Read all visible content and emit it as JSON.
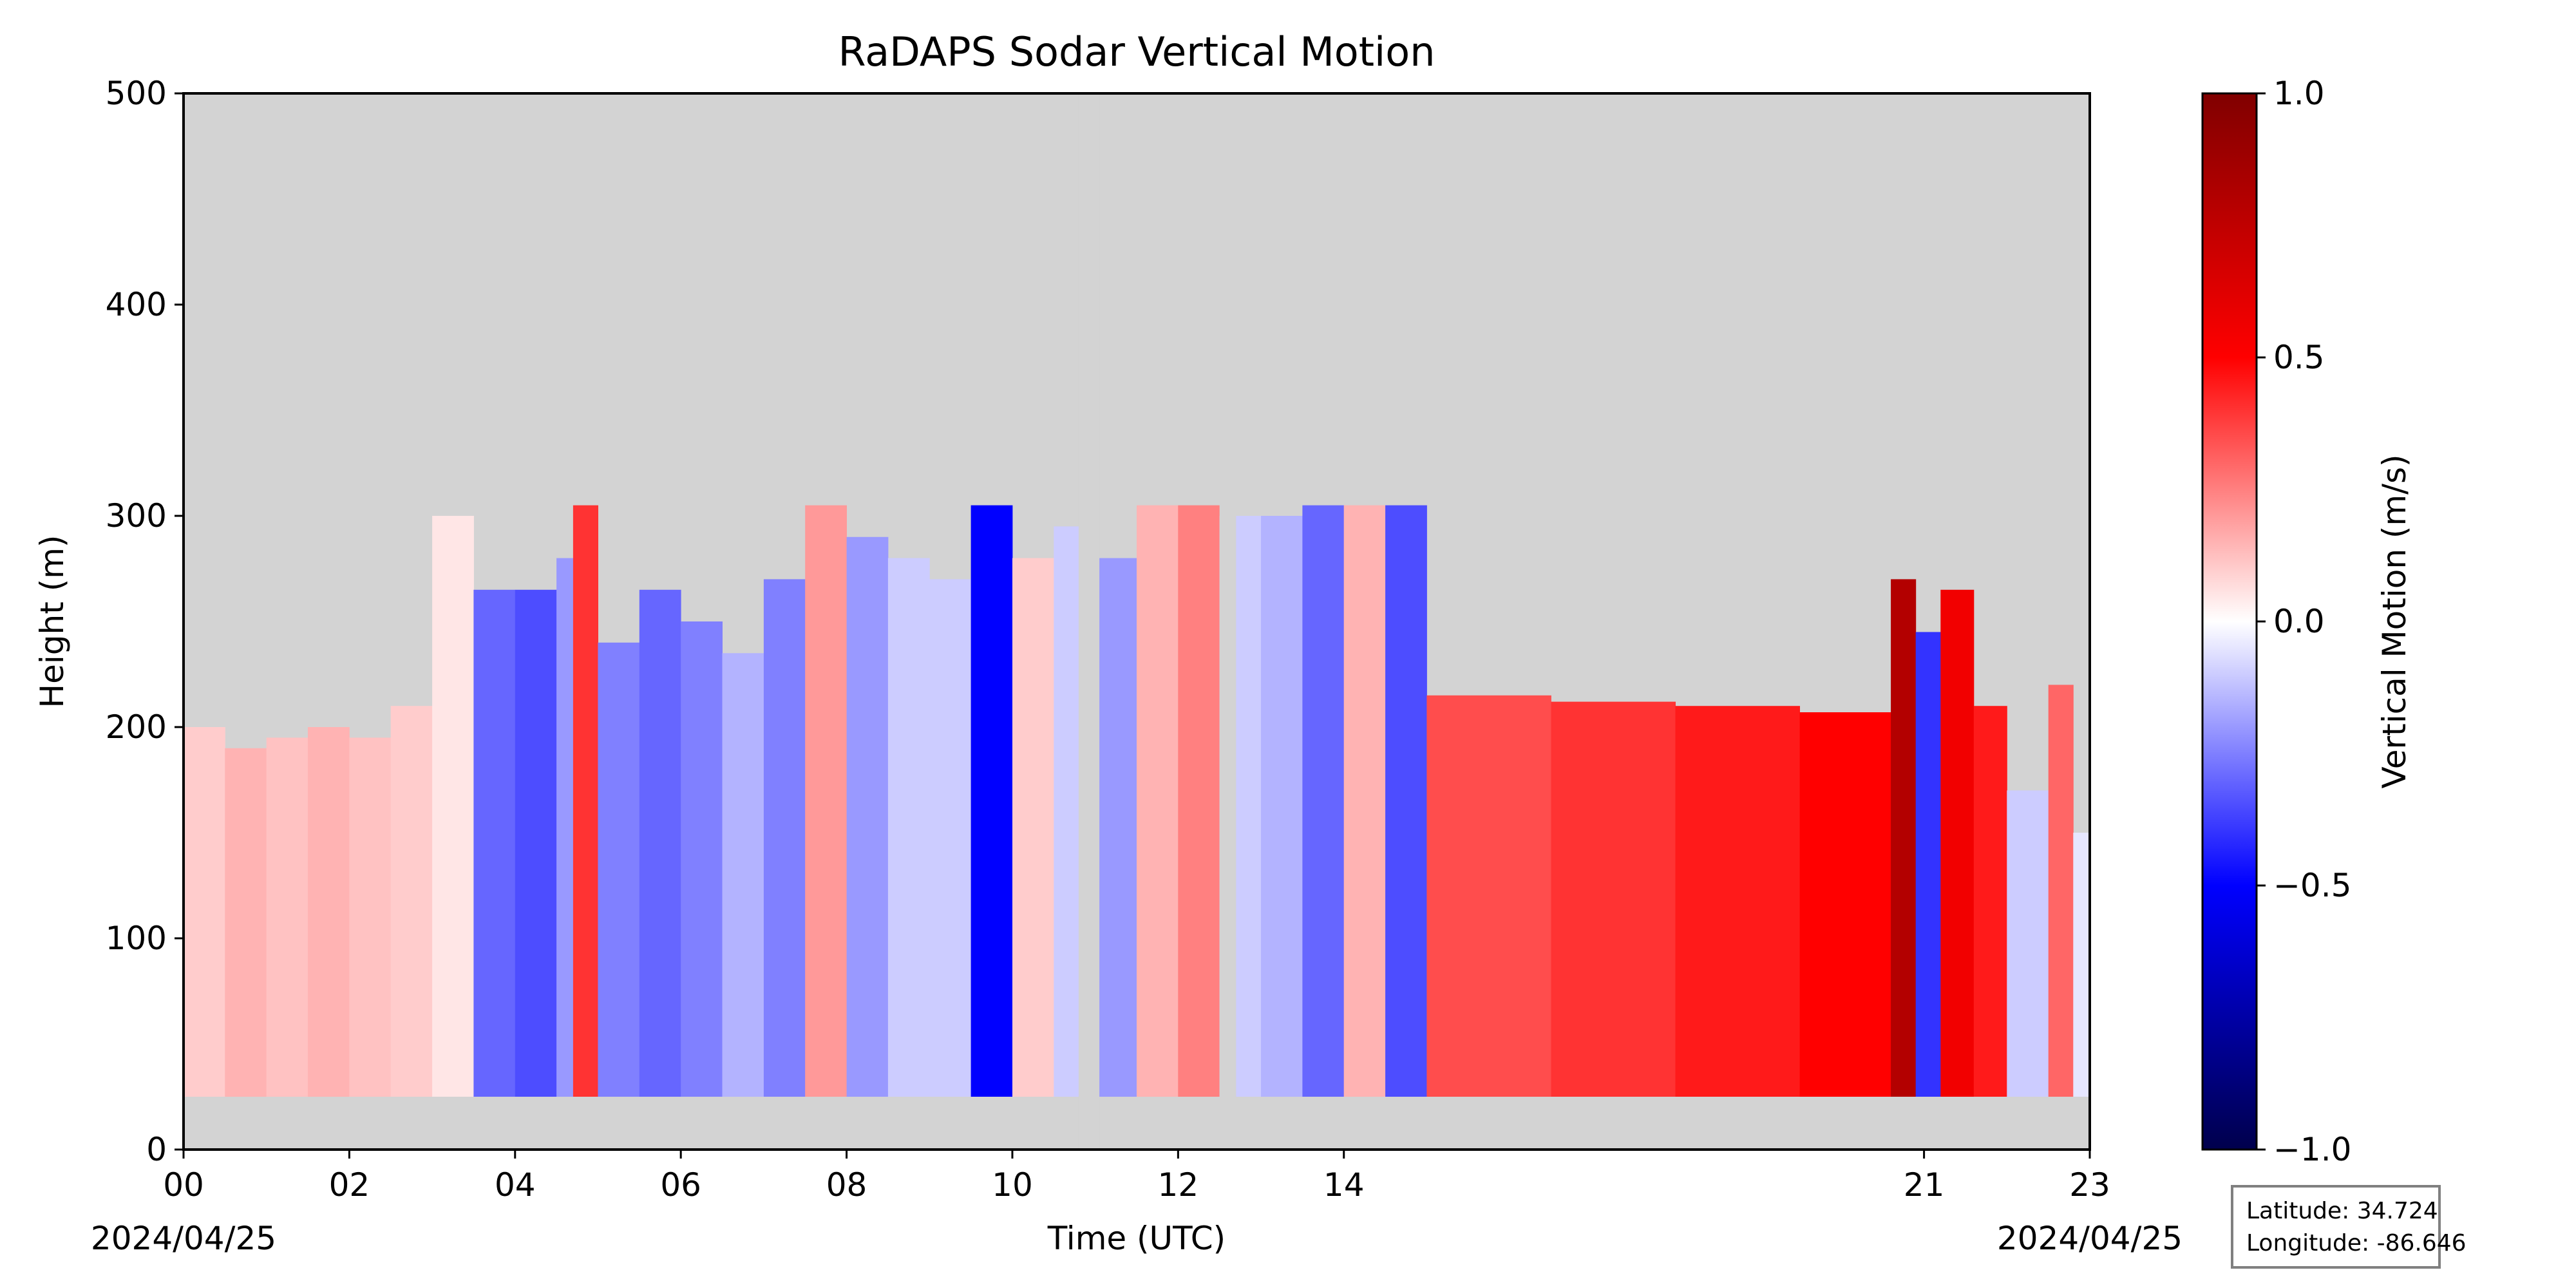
{
  "chart_data": {
    "type": "heatmap",
    "title": "RaDAPS Sodar Vertical Motion",
    "xlabel": "Time (UTC)",
    "ylabel": "Height (m)",
    "xlim": [
      0,
      23
    ],
    "ylim": [
      0,
      500
    ],
    "x_ticks": [
      {
        "value": 0,
        "label": "00"
      },
      {
        "value": 2,
        "label": "02"
      },
      {
        "value": 4,
        "label": "04"
      },
      {
        "value": 6,
        "label": "06"
      },
      {
        "value": 8,
        "label": "08"
      },
      {
        "value": 10,
        "label": "10"
      },
      {
        "value": 12,
        "label": "12"
      },
      {
        "value": 14,
        "label": "14"
      },
      {
        "value": 21,
        "label": "21"
      },
      {
        "value": 23,
        "label": "23"
      }
    ],
    "y_ticks": [
      0,
      100,
      200,
      300,
      400,
      500
    ],
    "date_left": "2024/04/25",
    "date_right": "2024/04/25",
    "colorbar": {
      "label": "Vertical Motion (m/s)",
      "range": [
        -1.0,
        1.0
      ],
      "ticks": [
        {
          "value": 1.0,
          "label": "1.0"
        },
        {
          "value": 0.5,
          "label": "0.5"
        },
        {
          "value": 0.0,
          "label": "0.0"
        },
        {
          "value": -0.5,
          "label": "−0.5"
        },
        {
          "value": -1.0,
          "label": "−1.0"
        }
      ],
      "colormap": "seismic",
      "colors": {
        "min": "#00004c",
        "mid_low": "#0000ff",
        "zero": "#ffffff",
        "mid_high": "#ff0000",
        "max": "#800000"
      }
    },
    "background_color": "#d3d3d3",
    "data_bottom_height": 25,
    "columns": [
      {
        "t": 0.0,
        "top": 200,
        "w": 0.1
      },
      {
        "t": 0.5,
        "top": 190,
        "w": 0.15
      },
      {
        "t": 1.0,
        "top": 195,
        "w": 0.12
      },
      {
        "t": 1.5,
        "top": 200,
        "w": 0.15
      },
      {
        "t": 2.0,
        "top": 195,
        "w": 0.12
      },
      {
        "t": 2.5,
        "top": 210,
        "w": 0.1
      },
      {
        "t": 3.0,
        "top": 300,
        "w": 0.05
      },
      {
        "t": 3.5,
        "top": 265,
        "w": -0.3
      },
      {
        "t": 4.0,
        "top": 265,
        "w": -0.35
      },
      {
        "t": 4.5,
        "top": 280,
        "w": -0.2
      },
      {
        "t": 4.7,
        "top": 305,
        "w": 0.4
      },
      {
        "t": 5.0,
        "top": 240,
        "w": -0.25
      },
      {
        "t": 5.5,
        "top": 265,
        "w": -0.3
      },
      {
        "t": 6.0,
        "top": 250,
        "w": -0.25
      },
      {
        "t": 6.5,
        "top": 235,
        "w": -0.15
      },
      {
        "t": 7.0,
        "top": 270,
        "w": -0.25
      },
      {
        "t": 7.5,
        "top": 305,
        "w": 0.2
      },
      {
        "t": 8.0,
        "top": 290,
        "w": -0.2
      },
      {
        "t": 8.5,
        "top": 280,
        "w": -0.1
      },
      {
        "t": 9.0,
        "top": 270,
        "w": -0.1
      },
      {
        "t": 9.5,
        "top": 305,
        "w": -0.5
      },
      {
        "t": 10.0,
        "top": 280,
        "w": 0.1
      },
      {
        "t": 10.5,
        "top": 295,
        "w": -0.1
      },
      {
        "t": 11.0,
        "top": 280,
        "w": -0.2
      },
      {
        "t": 11.5,
        "top": 305,
        "w": 0.15
      },
      {
        "t": 12.0,
        "top": 305,
        "w": 0.25
      },
      {
        "t": 12.5,
        "top": 300,
        "w": -0.1
      },
      {
        "t": 13.0,
        "top": 300,
        "w": -0.15
      },
      {
        "t": 13.5,
        "top": 305,
        "w": -0.3
      },
      {
        "t": 14.0,
        "top": 305,
        "w": 0.15
      },
      {
        "t": 14.5,
        "top": 305,
        "w": -0.35
      },
      {
        "t": 15.0,
        "top": 215,
        "w": 0.35
      },
      {
        "t": 16.5,
        "top": 212,
        "w": 0.4
      },
      {
        "t": 18.0,
        "top": 210,
        "w": 0.45
      },
      {
        "t": 19.5,
        "top": 207,
        "w": 0.5
      },
      {
        "t": 20.6,
        "top": 270,
        "w": 0.8
      },
      {
        "t": 20.9,
        "top": 245,
        "w": -0.4
      },
      {
        "t": 21.2,
        "top": 265,
        "w": 0.55
      },
      {
        "t": 21.6,
        "top": 210,
        "w": 0.45
      },
      {
        "t": 22.0,
        "top": 170,
        "w": -0.1
      },
      {
        "t": 22.5,
        "top": 220,
        "w": 0.3
      },
      {
        "t": 22.8,
        "top": 150,
        "w": -0.05
      }
    ],
    "gaps": [
      [
        10.8,
        11.05
      ],
      [
        12.5,
        12.7
      ]
    ]
  },
  "info_box": {
    "latitude_label": "Latitude: 34.724",
    "longitude_label": "Longitude: -86.646"
  }
}
